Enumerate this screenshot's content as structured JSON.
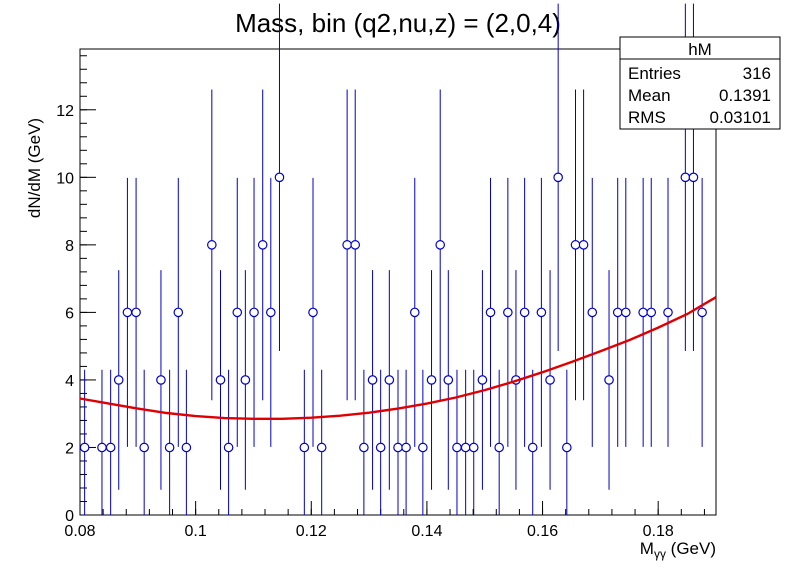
{
  "chart_data": {
    "type": "scatter",
    "title": "Mass, bin (q2,nu,z) = (2,0,4)",
    "xlabel_main": "M",
    "xlabel_sub": "γγ",
    "xlabel_unit": " (GeV)",
    "ylabel": "dN/dM (GeV)",
    "xlim": [
      0.08,
      0.19
    ],
    "ylim": [
      0,
      13.8
    ],
    "x_ticks": [
      0.08,
      0.1,
      0.12,
      0.14,
      0.16,
      0.18
    ],
    "x_tick_labels": [
      "0.08",
      "0.1",
      "0.12",
      "0.14",
      "0.16",
      "0.18"
    ],
    "y_ticks": [
      0,
      2,
      4,
      6,
      8,
      10,
      12
    ],
    "y_tick_labels": [
      "0",
      "2",
      "4",
      "6",
      "8",
      "10",
      "12"
    ],
    "marker_color": "#0000cc",
    "fit_color": "#e00000",
    "series": [
      {
        "x": [
          0.0808,
          0.0838,
          0.0853,
          0.0867,
          0.0882,
          0.0897,
          0.0911,
          0.094,
          0.0955,
          0.097,
          0.0984,
          0.1028,
          0.1043,
          0.1057,
          0.1072,
          0.1086,
          0.1101,
          0.1116,
          0.113,
          0.1145,
          0.1188,
          0.1203,
          0.1218,
          0.1262,
          0.1276,
          0.1291,
          0.1306,
          0.132,
          0.1335,
          0.135,
          0.1364,
          0.1379,
          0.1393,
          0.1408,
          0.1423,
          0.1437,
          0.1452,
          0.1467,
          0.1481,
          0.1496,
          0.151,
          0.1525,
          0.154,
          0.1554,
          0.1569,
          0.1583,
          0.1598,
          0.1613,
          0.1627,
          0.1642,
          0.1657,
          0.1671,
          0.1686,
          0.1715,
          0.173,
          0.1744,
          0.1774,
          0.1788,
          0.1817,
          0.1847,
          0.1861,
          0.1876
        ],
        "y": [
          2,
          2,
          2,
          4,
          6,
          6,
          2,
          4,
          2,
          6,
          2,
          8,
          4,
          2,
          6,
          4,
          6,
          8,
          6,
          10,
          2,
          6,
          2,
          8,
          8,
          2,
          4,
          2,
          4,
          2,
          2,
          6,
          2,
          4,
          8,
          4,
          2,
          2,
          2,
          4,
          6,
          2,
          6,
          4,
          6,
          2,
          6,
          4,
          10,
          2,
          8,
          8,
          6,
          4,
          6,
          6,
          6,
          6,
          6,
          10,
          10,
          6
        ]
      }
    ],
    "fit": {
      "x": [
        0.08,
        0.085,
        0.09,
        0.095,
        0.1,
        0.105,
        0.11,
        0.115,
        0.12,
        0.125,
        0.13,
        0.135,
        0.14,
        0.145,
        0.15,
        0.155,
        0.16,
        0.165,
        0.17,
        0.175,
        0.18,
        0.185,
        0.19
      ],
      "y": [
        3.45,
        3.3,
        3.15,
        3.02,
        2.93,
        2.87,
        2.85,
        2.85,
        2.88,
        2.94,
        3.03,
        3.15,
        3.3,
        3.48,
        3.7,
        3.95,
        4.23,
        4.53,
        4.85,
        5.18,
        5.55,
        5.95,
        6.45
      ]
    },
    "stats_box": {
      "title": "hM",
      "rows": [
        {
          "label": "Entries",
          "value": "316"
        },
        {
          "label": "Mean",
          "value": "0.1391"
        },
        {
          "label": "RMS",
          "value": "0.03101"
        }
      ]
    }
  }
}
